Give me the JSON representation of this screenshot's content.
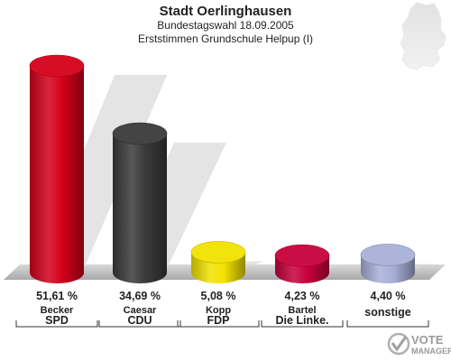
{
  "header": {
    "title": "Stadt Oerlinghausen",
    "subtitle": "Bundestagswahl 18.09.2005",
    "subtitle2": "Erststimmen Grundschule Helpup (I)"
  },
  "logo": {
    "line1": "VOTE",
    "line2": "MANAGER"
  },
  "chart_data": {
    "type": "bar",
    "title": "Stadt Oerlinghausen",
    "subtitle": "Bundestagswahl 18.09.2005 / Erststimmen Grundschule Helpup (I)",
    "categories": [
      "SPD",
      "CDU",
      "FDP",
      "Die Linke.",
      "sonstige"
    ],
    "candidates": [
      "Becker",
      "Caesar",
      "Kopp",
      "Bartel",
      ""
    ],
    "values": [
      51.61,
      34.69,
      5.08,
      4.23,
      4.4
    ],
    "value_labels": [
      "51,61 %",
      "34,69 %",
      "5,08 %",
      "4,23 %",
      "4,40 %"
    ],
    "colors": [
      "#d4001a",
      "#3a3a3a",
      "#f2e200",
      "#c8003c",
      "#a8b0d8"
    ],
    "unit": "%",
    "ylim": [
      0,
      55
    ],
    "grid": false,
    "legend": "none"
  }
}
